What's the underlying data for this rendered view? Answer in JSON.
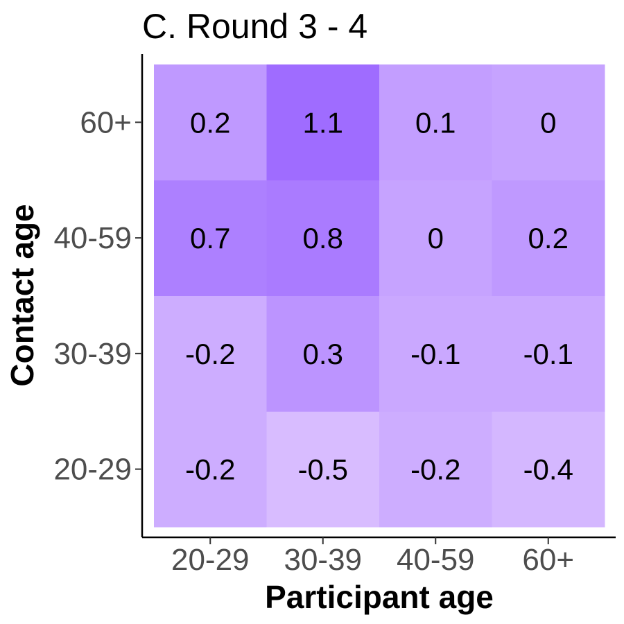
{
  "chart_data": {
    "type": "heatmap",
    "title": "C. Round 3 - 4",
    "xlabel": "Participant age",
    "ylabel": "Contact age",
    "x_categories": [
      "20-29",
      "30-39",
      "40-59",
      "60+"
    ],
    "y_categories": [
      "20-29",
      "30-39",
      "40-59",
      "60+"
    ],
    "values": [
      [
        -0.2,
        -0.5,
        -0.2,
        -0.4
      ],
      [
        -0.2,
        0.3,
        -0.1,
        -0.1
      ],
      [
        0.7,
        0.8,
        0,
        0.2
      ],
      [
        0.2,
        1.1,
        0.1,
        0
      ]
    ],
    "labels": [
      [
        "-0.2",
        "-0.5",
        "-0.2",
        "-0.4"
      ],
      [
        "-0.2",
        "0.3",
        "-0.1",
        "-0.1"
      ],
      [
        "0.7",
        "0.8",
        "0",
        "0.2"
      ],
      [
        "0.2",
        "1.1",
        "0.1",
        "0"
      ]
    ],
    "color_low": "#d8bcff",
    "color_high": "#9f6cff",
    "grid": false
  }
}
